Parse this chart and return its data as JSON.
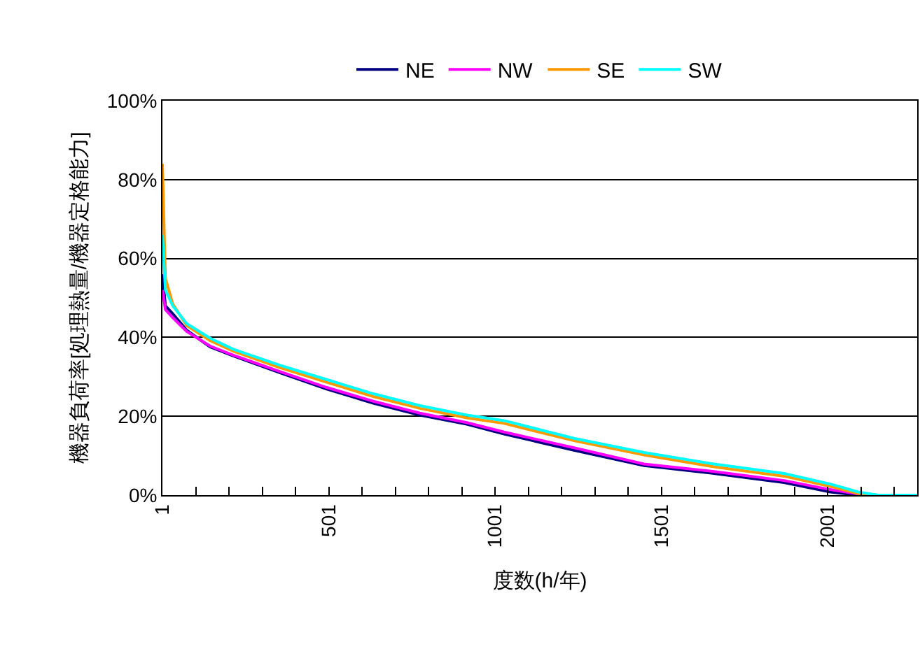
{
  "chart_data": {
    "type": "line",
    "xlabel": "度数(h/年)",
    "ylabel": "機器負荷率[処理熱量/機器定格能力]",
    "x": [
      1,
      10,
      32,
      74,
      144,
      214,
      355,
      495,
      635,
      775,
      916,
      1028,
      1238,
      1449,
      1659,
      1870,
      2009,
      2093,
      2152,
      2270
    ],
    "series": [
      {
        "name": "NE",
        "color": "#000080",
        "values": [
          56,
          48,
          46,
          41.8,
          37.6,
          35.3,
          31,
          26.9,
          23.3,
          20.3,
          18,
          15.5,
          11.4,
          7.5,
          5.5,
          3.2,
          0.8,
          0,
          0,
          0
        ]
      },
      {
        "name": "NW",
        "color": "#ff00ff",
        "values": [
          52,
          47,
          45,
          41.5,
          37.8,
          35.5,
          31.3,
          27.3,
          23.8,
          20.8,
          18.4,
          16,
          12,
          7.9,
          6,
          3.7,
          1.4,
          0.3,
          0,
          0
        ]
      },
      {
        "name": "SE",
        "color": "#ff9900",
        "values": [
          84,
          55,
          48.5,
          43,
          39.2,
          36.5,
          32.3,
          28.6,
          25,
          22,
          19.6,
          18.2,
          13.8,
          10.2,
          7.2,
          4.8,
          2.2,
          0.4,
          0,
          0
        ]
      },
      {
        "name": "SW",
        "color": "#00ffff",
        "values": [
          66,
          52,
          48,
          43.5,
          39.8,
          37,
          32.9,
          29.3,
          25.7,
          22.7,
          20.3,
          18.9,
          14.4,
          10.8,
          7.9,
          5.5,
          2.8,
          0.8,
          0,
          0
        ]
      }
    ],
    "xlim": [
      1,
      2270
    ],
    "xticks": [
      1,
      {
        "value": 101,
        "label": null
      },
      {
        "value": 201,
        "label": null
      },
      {
        "value": 301,
        "label": null
      },
      {
        "value": 401,
        "label": null
      },
      501,
      {
        "value": 601,
        "label": null
      },
      {
        "value": 701,
        "label": null
      },
      {
        "value": 801,
        "label": null
      },
      {
        "value": 901,
        "label": null
      },
      1001,
      {
        "value": 1101,
        "label": null
      },
      {
        "value": 1201,
        "label": null
      },
      {
        "value": 1301,
        "label": null
      },
      {
        "value": 1401,
        "label": null
      },
      1501,
      {
        "value": 1601,
        "label": null
      },
      {
        "value": 1701,
        "label": null
      },
      {
        "value": 1801,
        "label": null
      },
      {
        "value": 1901,
        "label": null
      },
      2001,
      {
        "value": 2101,
        "label": null
      },
      {
        "value": 2201,
        "label": null
      }
    ],
    "ylim": [
      0,
      100
    ],
    "yticks": [
      {
        "value": 0,
        "label": "0%"
      },
      {
        "value": 20,
        "label": "20%"
      },
      {
        "value": 40,
        "label": "40%"
      },
      {
        "value": 60,
        "label": "60%"
      },
      {
        "value": 80,
        "label": "80%"
      },
      {
        "value": 100,
        "label": "100%"
      }
    ],
    "grid": "y",
    "legend": "top",
    "marker": "none",
    "line_style": "solid"
  }
}
